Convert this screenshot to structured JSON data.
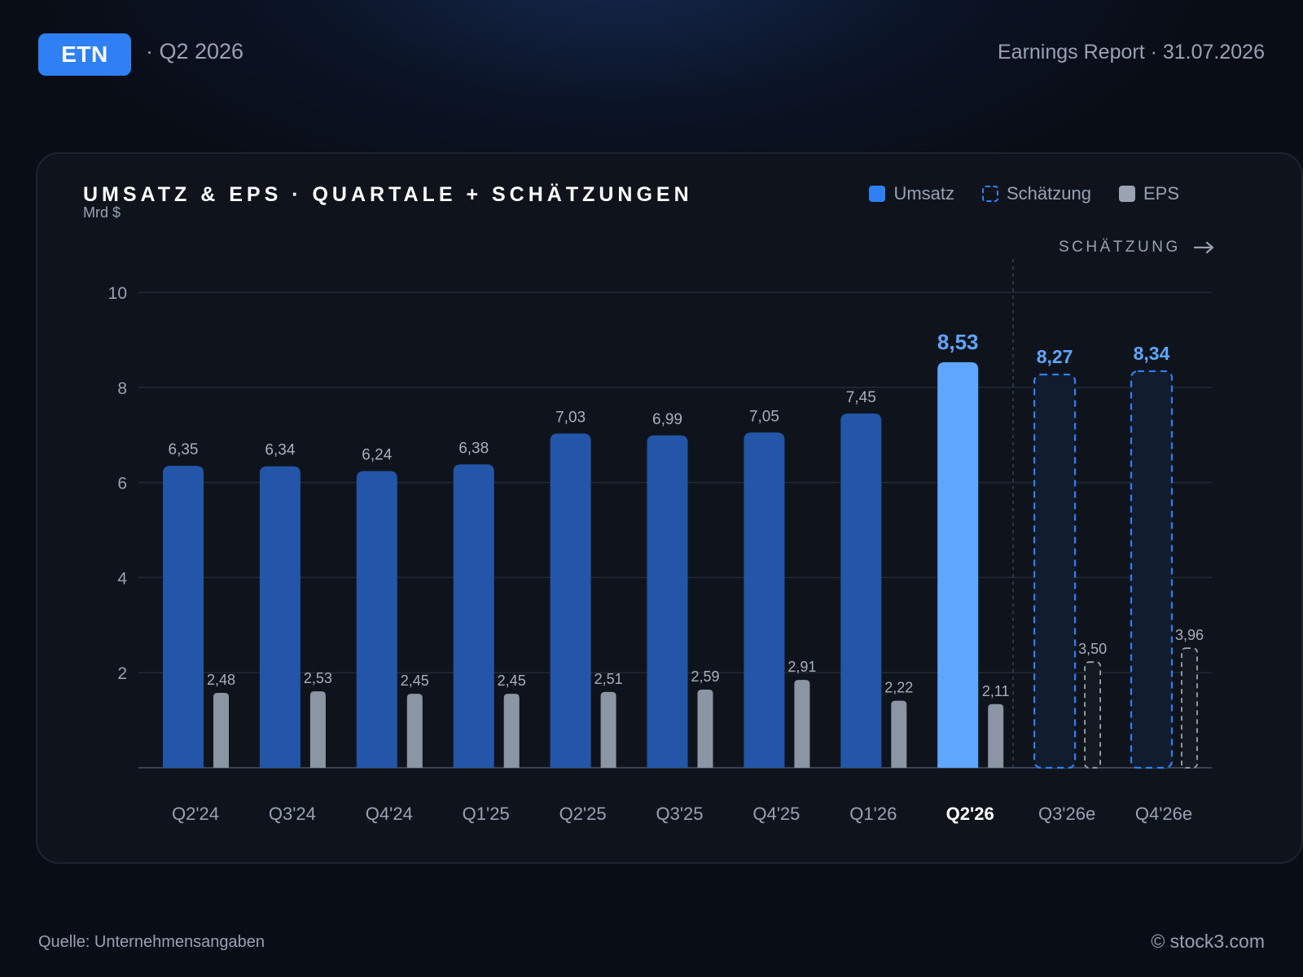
{
  "header": {
    "ticker": "ETN",
    "period": "· Q2 2026",
    "report": "Earnings Report · 31.07.2026"
  },
  "legend": {
    "revenue": "Umsatz",
    "estimate": "Schätzung",
    "eps": "EPS"
  },
  "estimate_marker": "SCHÄTZUNG",
  "footer": {
    "source": "Quelle: Unternehmensangaben",
    "copyright": "© stock3.com"
  },
  "colors": {
    "revenue": "#2356a8",
    "revenue_current": "#5ea6ff",
    "estimate_stroke": "#2f80f5",
    "eps": "#8b95a3",
    "highlight_label": "#5ea6ff"
  },
  "chart_data": {
    "type": "bar",
    "title": "UMSATZ & EPS · QUARTALE + SCHÄTZUNGEN",
    "ylabel": "Mrd $",
    "ylim": [
      0,
      10
    ],
    "yticks": [
      2,
      4,
      6,
      8,
      10
    ],
    "grid": true,
    "legend_position": "top-right",
    "categories": [
      "Q2'24",
      "Q3'24",
      "Q4'24",
      "Q1'25",
      "Q2'25",
      "Q3'25",
      "Q4'25",
      "Q1'26",
      "Q2'26",
      "Q3'26e",
      "Q4'26e"
    ],
    "highlight_category": "Q2'26",
    "estimate_categories": [
      "Q3'26e",
      "Q4'26e"
    ],
    "series": [
      {
        "name": "Umsatz",
        "values": [
          6.35,
          6.34,
          6.24,
          6.38,
          7.03,
          6.99,
          7.05,
          7.45,
          8.53,
          8.27,
          8.34
        ],
        "labels": [
          "6,35",
          "6,34",
          "6,24",
          "6,38",
          "7,03",
          "6,99",
          "7,05",
          "7,45",
          "8,53",
          "8,27",
          "8,34"
        ]
      },
      {
        "name": "EPS",
        "values": [
          2.48,
          2.53,
          2.45,
          2.45,
          2.51,
          2.59,
          2.91,
          2.22,
          2.11,
          3.5,
          3.96
        ],
        "labels": [
          "2,48",
          "2,53",
          "2,45",
          "2,45",
          "2,51",
          "2,59",
          "2,91",
          "2,22",
          "2,11",
          "3,50",
          "3,96"
        ]
      }
    ]
  }
}
